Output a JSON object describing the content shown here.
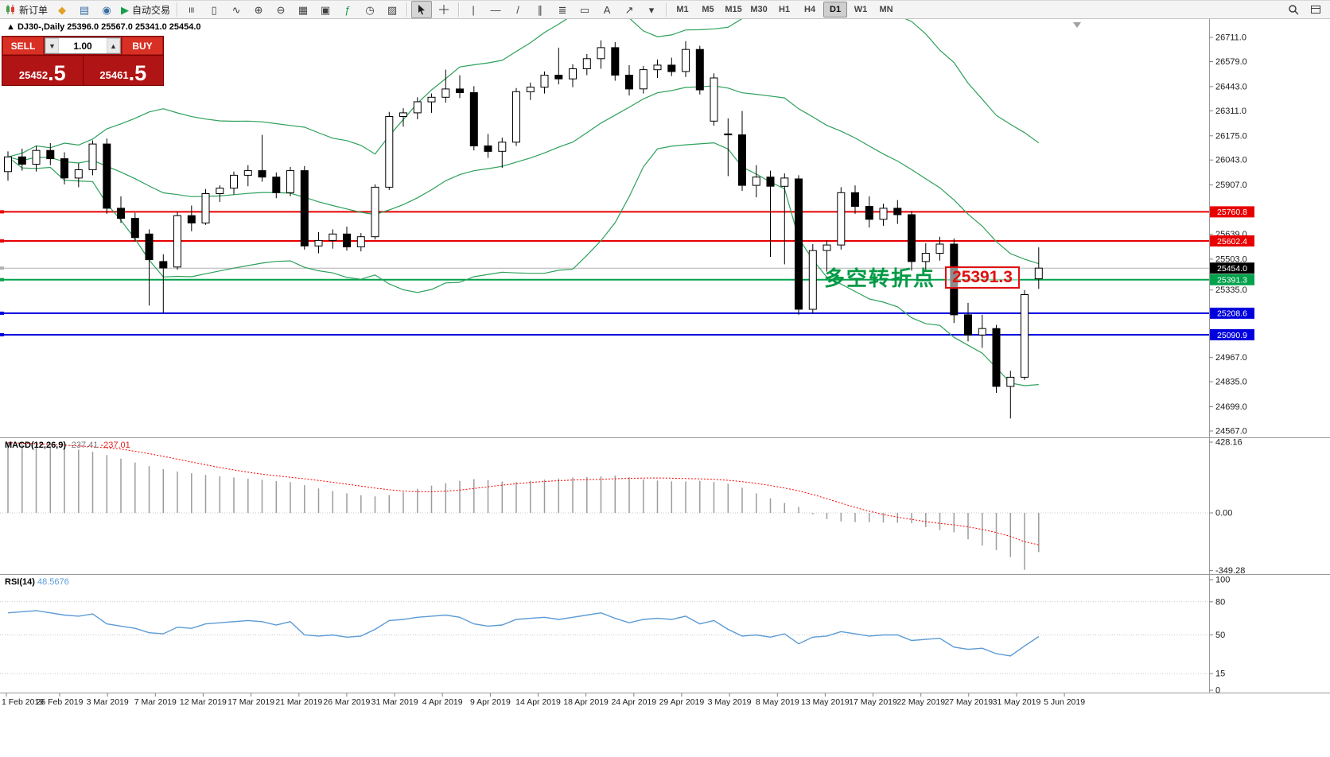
{
  "toolbar": {
    "groups": [
      {
        "items": [
          {
            "name": "new-order-button",
            "icon": "svg:candles",
            "icon_name": "new-order-icon",
            "label": "新订单"
          },
          {
            "name": "chart-profiles-button",
            "icon": "◆",
            "icon_name": "profiles-icon",
            "color": "#e0a126"
          },
          {
            "name": "market-watch-button",
            "icon": "▤",
            "icon_name": "market-watch-icon",
            "color": "#3a6ea5"
          },
          {
            "name": "data-window-button",
            "icon": "◉",
            "icon_name": "data-window-icon",
            "color": "#3a6ea5"
          },
          {
            "name": "autotrading-button",
            "icon": "▶",
            "icon_name": "autotrading-icon",
            "label": "自动交易",
            "color": "#18a04a"
          }
        ]
      },
      {
        "items": [
          {
            "name": "bar-chart-button",
            "icon": "≡",
            "icon_name": "bar-chart-icon",
            "rotate": 90
          },
          {
            "name": "candlestick-chart-button",
            "icon": "▯",
            "icon_name": "candlestick-chart-icon"
          },
          {
            "name": "line-chart-button",
            "icon": "∿",
            "icon_name": "line-chart-icon"
          },
          {
            "name": "zoom-in-button",
            "icon": "⊕",
            "icon_name": "zoom-in-icon"
          },
          {
            "name": "zoom-out-button",
            "icon": "⊖",
            "icon_name": "zoom-out-icon"
          },
          {
            "name": "tile-windows-button",
            "icon": "▦",
            "icon_name": "tile-windows-icon"
          },
          {
            "name": "new-chart-button",
            "icon": "▣",
            "icon_name": "new-chart-icon"
          },
          {
            "name": "indicators-button",
            "icon": "ƒ",
            "icon_name": "indicators-icon",
            "color": "#18a04a"
          },
          {
            "name": "periods-button",
            "icon": "◷",
            "icon_name": "periods-icon"
          },
          {
            "name": "templates-button",
            "icon": "▨",
            "icon_name": "templates-icon"
          }
        ]
      },
      {
        "items": [
          {
            "name": "cursor-button",
            "icon": "svg:cursor",
            "icon_name": "cursor-icon",
            "active": true
          },
          {
            "name": "crosshair-button",
            "icon": "svg:crosshair",
            "icon_name": "crosshair-icon"
          }
        ]
      },
      {
        "items": [
          {
            "name": "vertical-line-button",
            "icon": "|",
            "icon_name": "vertical-line-icon"
          },
          {
            "name": "horizontal-line-button",
            "icon": "—",
            "icon_name": "horizontal-line-icon"
          },
          {
            "name": "trendline-button",
            "icon": "/",
            "icon_name": "trendline-icon"
          },
          {
            "name": "equidistant-channel-button",
            "icon": "∥",
            "icon_name": "channel-icon"
          },
          {
            "name": "fibonacci-button",
            "icon": "≣",
            "icon_name": "fibonacci-icon"
          },
          {
            "name": "shapes-button",
            "icon": "▭",
            "icon_name": "shapes-icon"
          },
          {
            "name": "text-button",
            "icon": "A",
            "icon_name": "text-icon"
          },
          {
            "name": "arrow-objects-button",
            "icon": "↗",
            "icon_name": "arrow-objects-icon"
          },
          {
            "name": "objects-menu-button",
            "icon": "▾",
            "icon_name": "dropdown-icon"
          }
        ]
      },
      {
        "timeframes": true
      }
    ],
    "timeframes": [
      {
        "label": "M1"
      },
      {
        "label": "M5"
      },
      {
        "label": "M15"
      },
      {
        "label": "M30"
      },
      {
        "label": "H1"
      },
      {
        "label": "H4"
      },
      {
        "label": "D1",
        "active": true
      },
      {
        "label": "W1"
      },
      {
        "label": "MN"
      }
    ],
    "right_items": [
      {
        "name": "search-button",
        "icon": "svg:magnifier",
        "icon_name": "magnifier-icon"
      },
      {
        "name": "window-layout-button",
        "icon": "svg:window",
        "icon_name": "window-icon"
      }
    ]
  },
  "trade_panel": {
    "sell_label": "SELL",
    "buy_label": "BUY",
    "volume": "1.00",
    "volume_down_glyph": "▼",
    "volume_up_glyph": "▲",
    "sell_price_int": "25452",
    "sell_price_frac": ".5",
    "buy_price_int": "25461",
    "buy_price_frac": ".5"
  },
  "chart_data": {
    "type": "candlestick",
    "symbol": "DJ30-",
    "timeframe": "Daily",
    "title": "DJ30-,Daily",
    "ohlc_text": "25396.0 25567.0 25341.0 25454.0",
    "open": 25396.0,
    "high": 25567.0,
    "low": 25341.0,
    "close": 25454.0,
    "x_labels": [
      "1 Feb 2019",
      "26 Feb 2019",
      "3 Mar 2019",
      "7 Mar 2019",
      "12 Mar 2019",
      "17 Mar 2019",
      "21 Mar 2019",
      "26 Mar 2019",
      "31 Mar 2019",
      "4 Apr 2019",
      "9 Apr 2019",
      "14 Apr 2019",
      "18 Apr 2019",
      "24 Apr 2019",
      "29 Apr 2019",
      "3 May 2019",
      "8 May 2019",
      "13 May 2019",
      "17 May 2019",
      "22 May 2019",
      "27 May 2019",
      "31 May 2019",
      "5 Jun 2019"
    ],
    "price_ticks": [
      "26711.0",
      "26579.0",
      "26443.0",
      "26311.0",
      "26175.0",
      "26043.0",
      "25907.0",
      "25639.0",
      "25503.0",
      "25335.0",
      "24967.0",
      "24835.0",
      "24699.0",
      "24567.0"
    ],
    "hlines": [
      {
        "price": 25760.8,
        "label": "25760.8",
        "color": "#e80000",
        "width": 2,
        "type": "resistance-line"
      },
      {
        "price": 25602.4,
        "label": "25602.4",
        "color": "#e80000",
        "width": 2,
        "type": "resistance-line"
      },
      {
        "price": 25454.0,
        "label": "25454.0",
        "color": "#b0b0b0",
        "label_bg": "#000000",
        "width": 1,
        "type": "current-price-line"
      },
      {
        "price": 25391.3,
        "label": "25391.3",
        "color": "#00a14b",
        "width": 2,
        "type": "pivot-line"
      },
      {
        "price": 25208.6,
        "label": "25208.6",
        "color": "#0000dd",
        "width": 2,
        "type": "support-line"
      },
      {
        "price": 25090.9,
        "label": "25090.9",
        "color": "#0000dd",
        "width": 2,
        "type": "support-line"
      }
    ],
    "bollinger": {
      "period": 20,
      "deviation": 2,
      "color": "#2da05a"
    },
    "annotation": {
      "text": "多空转折点",
      "value_box": "25391.3",
      "text_color": "#009944",
      "box_color": "#e01010"
    },
    "candles_ohlc": [
      [
        25980,
        26090,
        25930,
        26060
      ],
      [
        26060,
        26105,
        25985,
        26020
      ],
      [
        26020,
        26120,
        25980,
        26095
      ],
      [
        26095,
        26135,
        26015,
        26050
      ],
      [
        26050,
        26085,
        25910,
        25945
      ],
      [
        25945,
        26025,
        25895,
        25990
      ],
      [
        25990,
        26150,
        25960,
        26130
      ],
      [
        26130,
        26160,
        25750,
        25780
      ],
      [
        25780,
        25845,
        25700,
        25725
      ],
      [
        25725,
        25755,
        25600,
        25620
      ],
      [
        25640,
        25665,
        25250,
        25500
      ],
      [
        25490,
        25530,
        25210,
        25455
      ],
      [
        25460,
        25760,
        25445,
        25740
      ],
      [
        25740,
        25795,
        25655,
        25700
      ],
      [
        25700,
        25885,
        25690,
        25860
      ],
      [
        25860,
        25905,
        25815,
        25890
      ],
      [
        25890,
        25980,
        25855,
        25960
      ],
      [
        25960,
        26015,
        25900,
        25985
      ],
      [
        25985,
        26180,
        25925,
        25950
      ],
      [
        25950,
        25975,
        25835,
        25865
      ],
      [
        25865,
        26005,
        25845,
        25985
      ],
      [
        25985,
        26010,
        25555,
        25575
      ],
      [
        25575,
        25650,
        25535,
        25605
      ],
      [
        25605,
        25665,
        25560,
        25640
      ],
      [
        25640,
        25680,
        25550,
        25570
      ],
      [
        25570,
        25645,
        25545,
        25625
      ],
      [
        25625,
        25910,
        25610,
        25895
      ],
      [
        25895,
        26305,
        25880,
        26280
      ],
      [
        26280,
        26325,
        26225,
        26300
      ],
      [
        26300,
        26385,
        26265,
        26360
      ],
      [
        26360,
        26405,
        26300,
        26385
      ],
      [
        26385,
        26535,
        26355,
        26430
      ],
      [
        26430,
        26505,
        26380,
        26410
      ],
      [
        26410,
        26445,
        26095,
        26120
      ],
      [
        26120,
        26185,
        26055,
        26090
      ],
      [
        26090,
        26165,
        26000,
        26140
      ],
      [
        26140,
        26435,
        26120,
        26415
      ],
      [
        26415,
        26465,
        26370,
        26440
      ],
      [
        26440,
        26525,
        26405,
        26505
      ],
      [
        26505,
        26655,
        26455,
        26485
      ],
      [
        26485,
        26565,
        26440,
        26540
      ],
      [
        26540,
        26620,
        26505,
        26595
      ],
      [
        26595,
        26695,
        26540,
        26655
      ],
      [
        26655,
        26685,
        26475,
        26505
      ],
      [
        26505,
        26560,
        26395,
        26430
      ],
      [
        26430,
        26555,
        26405,
        26535
      ],
      [
        26535,
        26590,
        26490,
        26560
      ],
      [
        26560,
        26600,
        26500,
        26525
      ],
      [
        26525,
        26690,
        26495,
        26645
      ],
      [
        26645,
        26665,
        26400,
        26425
      ],
      [
        26255,
        26515,
        26230,
        26490
      ],
      [
        26185,
        26270,
        25955,
        26180
      ],
      [
        26180,
        26310,
        25875,
        25905
      ],
      [
        25905,
        26015,
        25840,
        25950
      ],
      [
        25950,
        25985,
        25515,
        25900
      ],
      [
        25900,
        25970,
        25475,
        25945
      ],
      [
        25940,
        25960,
        25200,
        25230
      ],
      [
        25230,
        25585,
        25205,
        25550
      ],
      [
        25550,
        25605,
        25435,
        25580
      ],
      [
        25580,
        25895,
        25555,
        25865
      ],
      [
        25865,
        25905,
        25750,
        25790
      ],
      [
        25790,
        25845,
        25675,
        25720
      ],
      [
        25720,
        25805,
        25685,
        25780
      ],
      [
        25780,
        25825,
        25695,
        25745
      ],
      [
        25745,
        25765,
        25440,
        25490
      ],
      [
        25490,
        25590,
        25435,
        25535
      ],
      [
        25535,
        25625,
        25495,
        25585
      ],
      [
        25585,
        25615,
        25155,
        25200
      ],
      [
        25200,
        25265,
        25055,
        25090
      ],
      [
        25090,
        25200,
        25020,
        25125
      ],
      [
        25125,
        25145,
        24775,
        24810
      ],
      [
        24810,
        24895,
        24635,
        24860
      ],
      [
        24860,
        25335,
        24845,
        25310
      ],
      [
        25396,
        25567,
        25341,
        25454
      ]
    ],
    "indicators": [
      {
        "name": "MACD",
        "label": "MACD(12,26,9)",
        "value": "-237.41",
        "signal": "-237.01",
        "scale_labels": [
          "428.16",
          "0.00",
          "-349.28"
        ],
        "hist_color": "#9c9c9c",
        "signal_color": "#ff0000",
        "signal_period": 9,
        "histogram": [
          425,
          418,
          410,
          402,
          393,
          382,
          370,
          350,
          328,
          305,
          283,
          265,
          250,
          240,
          230,
          222,
          214,
          207,
          200,
          192,
          186,
          168,
          148,
          132,
          118,
          107,
          100,
          108,
          126,
          146,
          165,
          180,
          194,
          204,
          198,
          190,
          186,
          194,
          201,
          208,
          214,
          217,
          221,
          226,
          216,
          202,
          196,
          191,
          190,
          194,
          186,
          176,
          152,
          118,
          88,
          60,
          36,
          -8,
          -38,
          -52,
          -56,
          -57,
          -58,
          -60,
          -62,
          -86,
          -104,
          -118,
          -160,
          -198,
          -225,
          -268,
          -345,
          -237.41
        ]
      },
      {
        "name": "RSI",
        "label": "RSI(14)",
        "value": "48.5676",
        "levels": [
          100,
          80,
          50,
          15,
          0
        ],
        "color": "#5b9bd5",
        "values": [
          70,
          71,
          72,
          70,
          68,
          67,
          69,
          60,
          58,
          56,
          52,
          51,
          57,
          56,
          60,
          61,
          62,
          63,
          62,
          59,
          62,
          50,
          49,
          50,
          48,
          49,
          55,
          63,
          64,
          66,
          67,
          68,
          66,
          60,
          58,
          59,
          64,
          65,
          66,
          64,
          66,
          68,
          70,
          65,
          61,
          64,
          65,
          64,
          67,
          60,
          63,
          55,
          49,
          50,
          48,
          51,
          42,
          48,
          49,
          53,
          51,
          49,
          50,
          50,
          45,
          46,
          47,
          39,
          37,
          38,
          33,
          31,
          40,
          48.5676
        ]
      }
    ]
  }
}
